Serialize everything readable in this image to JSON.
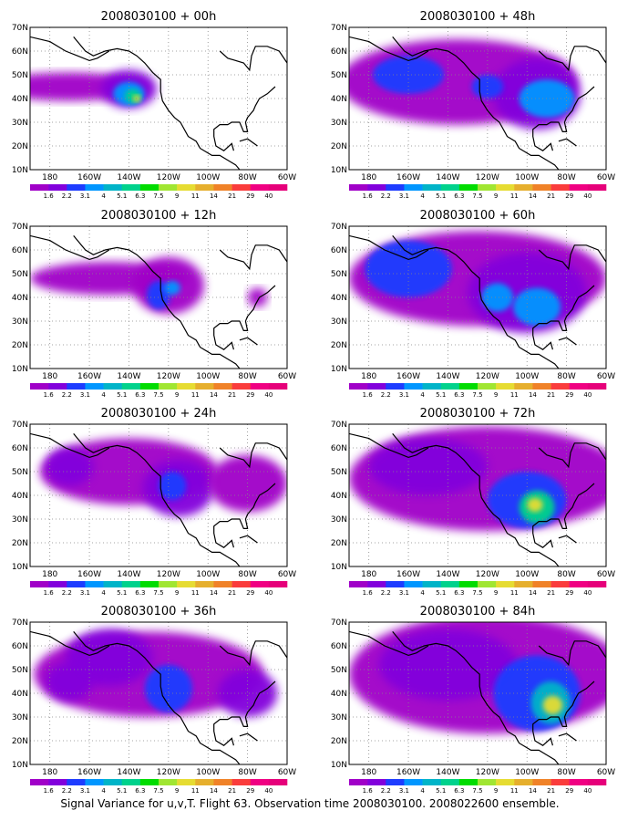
{
  "figure": {
    "caption": "Signal Variance for u,v,T. Flight 63. Observation time 2008030100. 2008022600 ensemble.",
    "lat_labels": [
      "70N",
      "60N",
      "50N",
      "40N",
      "30N",
      "20N",
      "10N"
    ],
    "lon_labels": [
      "180",
      "160W",
      "140W",
      "120W",
      "100W",
      "80W",
      "60W"
    ],
    "colorbar": {
      "labels": [
        "1.6",
        "2.2",
        "3.1",
        "4",
        "5.1",
        "6.3",
        "7.5",
        "9",
        "11",
        "14",
        "21",
        "29",
        "40"
      ],
      "colors": [
        "#a000c8",
        "#8200dc",
        "#1e3cff",
        "#0096ff",
        "#00b4c8",
        "#00d28c",
        "#00dc00",
        "#a0e632",
        "#e6dc32",
        "#e6af2d",
        "#f08228",
        "#fa3c3c",
        "#f00082",
        "#e6007a"
      ]
    }
  },
  "panels": [
    {
      "title": "2008030100 + 00h"
    },
    {
      "title": "2008030100 + 48h"
    },
    {
      "title": "2008030100 + 12h"
    },
    {
      "title": "2008030100 + 60h"
    },
    {
      "title": "2008030100 + 24h"
    },
    {
      "title": "2008030100 + 72h"
    },
    {
      "title": "2008030100 + 36h"
    },
    {
      "title": "2008030100 + 84h"
    }
  ]
}
